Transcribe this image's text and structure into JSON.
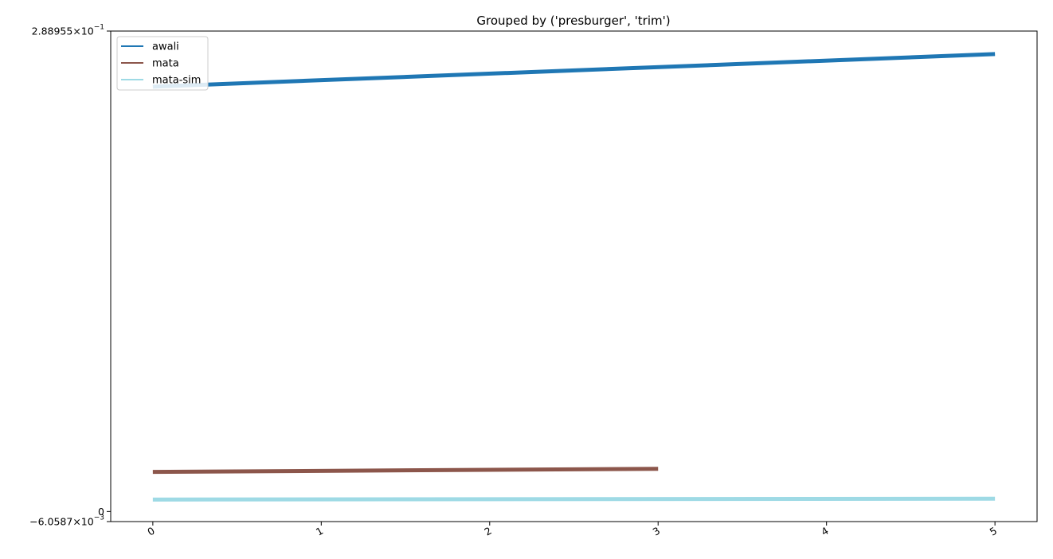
{
  "chart_data": {
    "type": "line",
    "title": "Grouped by ('presburger', 'trim')",
    "xlabel": "",
    "ylabel": "",
    "x_ticks": [
      "0",
      "1",
      "2",
      "3",
      "4",
      "5"
    ],
    "xlim": [
      -0.25,
      5.25
    ],
    "ylim": [
      -0.0060587,
      0.288955
    ],
    "y_ticks": [
      {
        "value": 0.288955,
        "mantissa": "2.88955",
        "exponent": "−1"
      },
      {
        "value": 0,
        "plain": "0"
      },
      {
        "value": -0.0060587,
        "mantissa": "−6.0587",
        "exponent": "−3"
      }
    ],
    "legend": {
      "position": "top-left",
      "entries": [
        "awali",
        "mata",
        "mata-sim"
      ]
    },
    "series": [
      {
        "name": "awali",
        "color": "#1f77b4",
        "x": [
          0,
          5
        ],
        "y": [
          0.2555,
          0.2751
        ]
      },
      {
        "name": "mata",
        "color": "#8c564b",
        "x": [
          0,
          3
        ],
        "y": [
          0.0238,
          0.0257
        ]
      },
      {
        "name": "mata-sim",
        "color": "#9edae5",
        "x": [
          0,
          5
        ],
        "y": [
          0.0072,
          0.0077
        ]
      }
    ],
    "grid": false
  }
}
